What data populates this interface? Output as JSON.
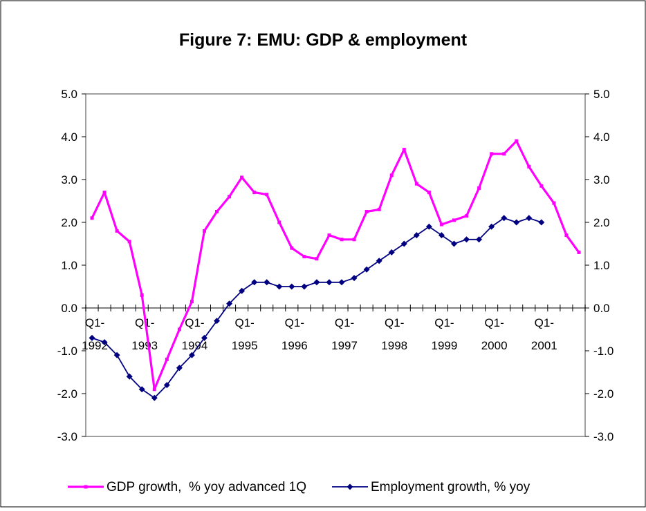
{
  "chart_data": {
    "type": "line",
    "title": "Figure 7: EMU: GDP & employment",
    "categories_print": [
      "Q1-\n1992",
      "Q1-\n1993",
      "Q1-\n1994",
      "Q1-\n1995",
      "Q1-\n1996",
      "Q1-\n1997",
      "Q1-\n1998",
      "Q1-\n1999",
      "Q1-\n2000",
      "Q1-\n2001"
    ],
    "x_tick_top": "Q1-",
    "x_ticks": [
      "1992",
      "1993",
      "1994",
      "1995",
      "1996",
      "1997",
      "1998",
      "1999",
      "2000",
      "2001"
    ],
    "y_ticks": [
      "5.0",
      "4.0",
      "3.0",
      "2.0",
      "1.0",
      "0.0",
      "-1.0",
      "-2.0",
      "-3.0"
    ],
    "ylim": [
      -3,
      5
    ],
    "x_count": 40,
    "grid": false,
    "legend_position": "bottom",
    "series": [
      {
        "name": "GDP growth,  % yoy advanced 1Q",
        "color": "#ff00ff",
        "marker": "square",
        "values": [
          2.1,
          2.7,
          1.8,
          1.55,
          0.3,
          -1.9,
          -1.2,
          -0.5,
          0.15,
          1.8,
          2.25,
          2.6,
          3.05,
          2.7,
          2.65,
          2.0,
          1.4,
          1.2,
          1.15,
          1.7,
          1.6,
          1.6,
          2.25,
          2.3,
          3.1,
          3.7,
          2.9,
          2.7,
          1.95,
          2.05,
          2.15,
          2.8,
          3.6,
          3.6,
          3.9,
          3.3,
          2.85,
          2.45,
          1.7,
          1.3
        ]
      },
      {
        "name": "Employment growth, % yoy",
        "color": "#000080",
        "marker": "diamond",
        "values": [
          -0.7,
          -0.8,
          -1.1,
          -1.6,
          -1.9,
          -2.1,
          -1.8,
          -1.4,
          -1.1,
          -0.7,
          -0.3,
          0.1,
          0.4,
          0.6,
          0.6,
          0.5,
          0.5,
          0.5,
          0.6,
          0.6,
          0.6,
          0.7,
          0.9,
          1.1,
          1.3,
          1.5,
          1.7,
          1.9,
          1.7,
          1.5,
          1.6,
          1.6,
          1.9,
          2.1,
          2.0,
          2.1,
          2.0
        ]
      }
    ]
  }
}
